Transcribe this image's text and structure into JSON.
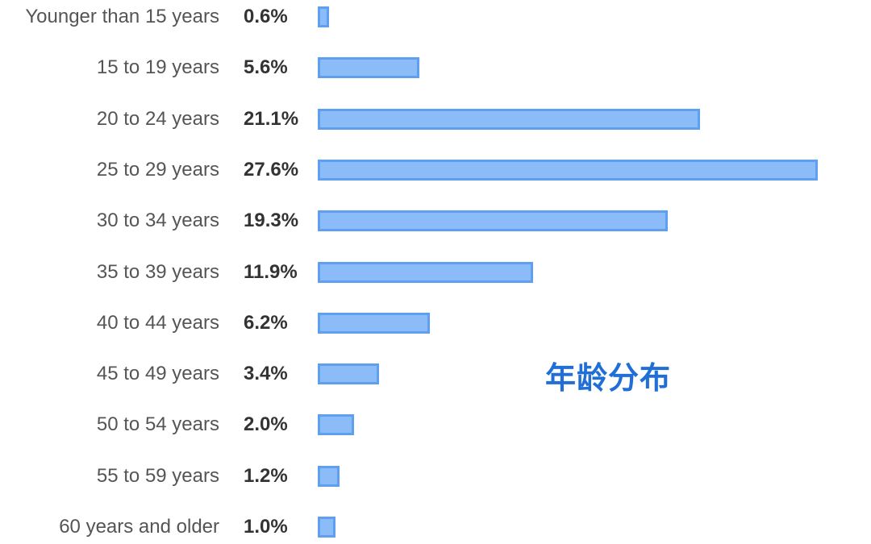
{
  "chart_data": {
    "type": "bar",
    "orientation": "horizontal",
    "categories": [
      "Younger than 15 years",
      "15 to 19 years",
      "20 to 24 years",
      "25 to 29 years",
      "30 to 34 years",
      "35 to 39 years",
      "40 to 44 years",
      "45 to 49 years",
      "50 to 54 years",
      "55 to 59 years",
      "60 years and older"
    ],
    "values": [
      0.6,
      5.6,
      21.1,
      27.6,
      19.3,
      11.9,
      6.2,
      3.4,
      2.0,
      1.2,
      1.0
    ],
    "value_labels": [
      "0.6%",
      "5.6%",
      "21.1%",
      "27.6%",
      "19.3%",
      "11.9%",
      "6.2%",
      "3.4%",
      "2.0%",
      "1.2%",
      "1.0%"
    ],
    "unit": "%",
    "title": "",
    "annotation": "年龄分布",
    "grid": false,
    "legend": "none",
    "colors": {
      "bar_fill": "#8bbcf7",
      "bar_border": "#5f9ff0",
      "annotation": "#1f6fd6",
      "category_text": "#555555",
      "value_text": "#333333"
    }
  }
}
